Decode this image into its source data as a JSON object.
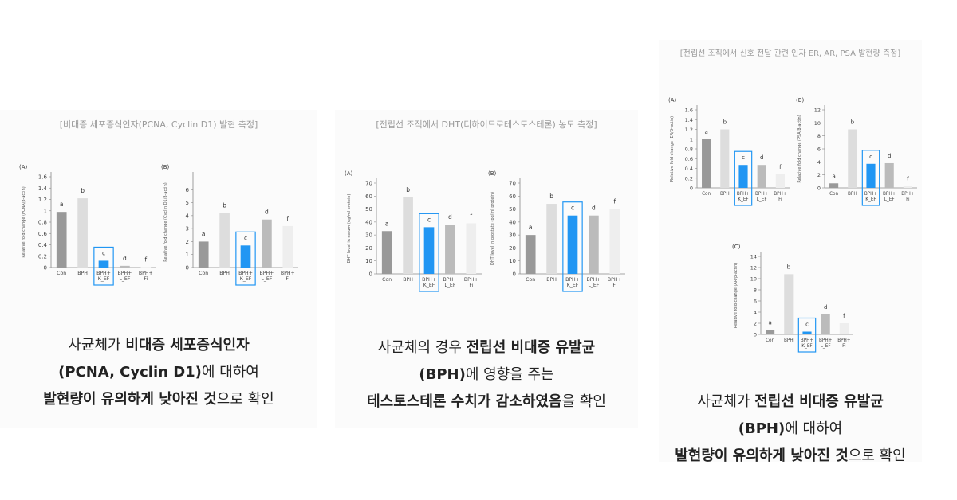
{
  "sections": [
    {
      "header": "[비대증 세포증식인자(PCNA, Cyclin D1) 발현 측정]",
      "caption_lines": [
        {
          "pre": "사균체가 ",
          "bold": "비대증 세포증식인자",
          "post": ""
        },
        {
          "pre": "",
          "bold": "(PCNA, Cyclin D1)",
          "post": "에 대하여"
        },
        {
          "pre": "",
          "bold": "발현량이 유의하게 낮아진 것",
          "post": "으로 확인"
        }
      ]
    },
    {
      "header": "[전립선 조직에서 DHT(디하이드로테스토스테론) 농도 측정]",
      "caption_lines": [
        {
          "pre": "사균체의 경우 ",
          "bold": "전립선 비대증 유발균",
          "post": ""
        },
        {
          "pre": "",
          "bold": "(BPH)",
          "post": "에 영향을 주는"
        },
        {
          "pre": "",
          "bold": "테스토스테론 수치가 감소하였음",
          "post": "을 확인"
        }
      ]
    },
    {
      "header": "[전립선 조직에서 신호 전달 관련 인자 ER, AR, PSA 발현량 측정]",
      "caption_lines": [
        {
          "pre": "사균체가 ",
          "bold": "전립선 비대증 유발균",
          "post": ""
        },
        {
          "pre": "",
          "bold": "(BPH)",
          "post": "에 대하여"
        },
        {
          "pre": "",
          "bold": "발현량이 유의하게 낮아진 것",
          "post": "으로 확인"
        }
      ]
    }
  ],
  "colors": {
    "con": "#999999",
    "bph": "#dddddd",
    "kef": "#2196f3",
    "lef": "#bbbbbb",
    "fi": "#eeeeee",
    "highlight_box": "#2196f3"
  },
  "chart_data": [
    {
      "panel": "(A)",
      "type": "bar",
      "ylabel": "Relative fold change (PCNA/β-actin)",
      "categories": [
        "Con",
        "BPH",
        "BPH+ K_EF",
        "BPH+ L_EF",
        "BPH+ Fi"
      ],
      "values": [
        0.98,
        1.22,
        0.12,
        0.03,
        0.01
      ],
      "letters": [
        "a",
        "b",
        "c",
        "d",
        "f"
      ],
      "ylim": [
        0,
        1.6
      ],
      "ticks": [
        0,
        0.2,
        0.4,
        0.6,
        0.8,
        1.0,
        1.2,
        1.4,
        1.6
      ],
      "tick_labels": [
        "0",
        "0.2",
        "0.4",
        "0.6",
        "0.8",
        "1",
        "1.2",
        "1.4",
        "1.6"
      ]
    },
    {
      "panel": "(B)",
      "type": "bar",
      "ylabel": "Relative fold change (Cyclin D1/β-actin)",
      "categories": [
        "Con",
        "BPH",
        "BPH+ K_EF",
        "BPH+ L_EF",
        "BPH+ Fi"
      ],
      "values": [
        2.0,
        4.2,
        1.7,
        3.7,
        3.2
      ],
      "letters": [
        "a",
        "b",
        "c",
        "d",
        "f"
      ],
      "ylim": [
        0,
        7
      ],
      "ticks": [
        0,
        1,
        2,
        3,
        4,
        5,
        6
      ],
      "tick_labels": [
        "0",
        "1",
        "2",
        "3",
        "4",
        "5",
        "6"
      ]
    },
    {
      "panel": "(A)",
      "type": "bar",
      "ylabel": "DHT level in serum (ng/ml protein)",
      "categories": [
        "Con",
        "BPH",
        "BPH+ K_EF",
        "BPH+ L_EF",
        "BPH+ Fi"
      ],
      "values": [
        33,
        59,
        36,
        38,
        39
      ],
      "letters": [
        "a",
        "b",
        "c",
        "d",
        "f"
      ],
      "ylim": [
        0,
        70
      ],
      "ticks": [
        0,
        10,
        20,
        30,
        40,
        50,
        60,
        70
      ],
      "tick_labels": [
        "0",
        "10",
        "20",
        "30",
        "40",
        "50",
        "60",
        "70"
      ]
    },
    {
      "panel": "(B)",
      "type": "bar",
      "ylabel": "DHT level in prostate (pg/ml protein)",
      "categories": [
        "Con",
        "BPH",
        "BPH+ K_EF",
        "BPH+ L_EF",
        "BPH+ Fi"
      ],
      "values": [
        30,
        54,
        45,
        45,
        50
      ],
      "letters": [
        "a",
        "b",
        "c",
        "d",
        "f"
      ],
      "ylim": [
        0,
        70
      ],
      "ticks": [
        0,
        10,
        20,
        30,
        40,
        50,
        60,
        70
      ],
      "tick_labels": [
        "0",
        "10",
        "20",
        "30",
        "40",
        "50",
        "60",
        "70"
      ]
    },
    {
      "panel": "(A)",
      "type": "bar",
      "ylabel": "Relative fold change (ER/β-actin)",
      "categories": [
        "Con",
        "BPH",
        "BPH+ K_EF",
        "BPH+ L_EF",
        "BPH+ Fi"
      ],
      "values": [
        1.0,
        1.2,
        0.47,
        0.47,
        0.28
      ],
      "letters": [
        "a",
        "b",
        "c",
        "d",
        "f"
      ],
      "ylim": [
        0,
        1.6
      ],
      "ticks": [
        0,
        0.2,
        0.4,
        0.6,
        0.8,
        1.0,
        1.2,
        1.4,
        1.6
      ],
      "tick_labels": [
        "0",
        "0.2",
        "0.4",
        "0.6",
        "0.8",
        "1",
        "1.2",
        "1.4",
        "1.6"
      ]
    },
    {
      "panel": "(B)",
      "type": "bar",
      "ylabel": "Relative fold change (PSA/β-actin)",
      "categories": [
        "Con",
        "BPH",
        "BPH+ K_EF",
        "BPH+ L_EF",
        "BPH+ Fi"
      ],
      "values": [
        0.7,
        9.0,
        3.7,
        3.8,
        0.3
      ],
      "letters": [
        "a",
        "b",
        "c",
        "d",
        "f"
      ],
      "ylim": [
        0,
        12
      ],
      "ticks": [
        0,
        2,
        4,
        6,
        8,
        10,
        12
      ],
      "tick_labels": [
        "0",
        "2",
        "4",
        "6",
        "8",
        "10",
        "12"
      ]
    },
    {
      "panel": "(C)",
      "type": "bar",
      "ylabel": "Relative fold change (AR/β-actin)",
      "categories": [
        "Con",
        "BPH",
        "BPH+ K_EF",
        "BPH+ L_EF",
        "BPH+ Fi"
      ],
      "values": [
        0.8,
        10.8,
        0.5,
        3.6,
        2.0
      ],
      "letters": [
        "a",
        "b",
        "c",
        "d",
        "f"
      ],
      "ylim": [
        0,
        14
      ],
      "ticks": [
        0,
        2,
        4,
        6,
        8,
        10,
        12,
        14
      ],
      "tick_labels": [
        "0",
        "2",
        "4",
        "6",
        "8",
        "10",
        "12",
        "14"
      ]
    }
  ]
}
